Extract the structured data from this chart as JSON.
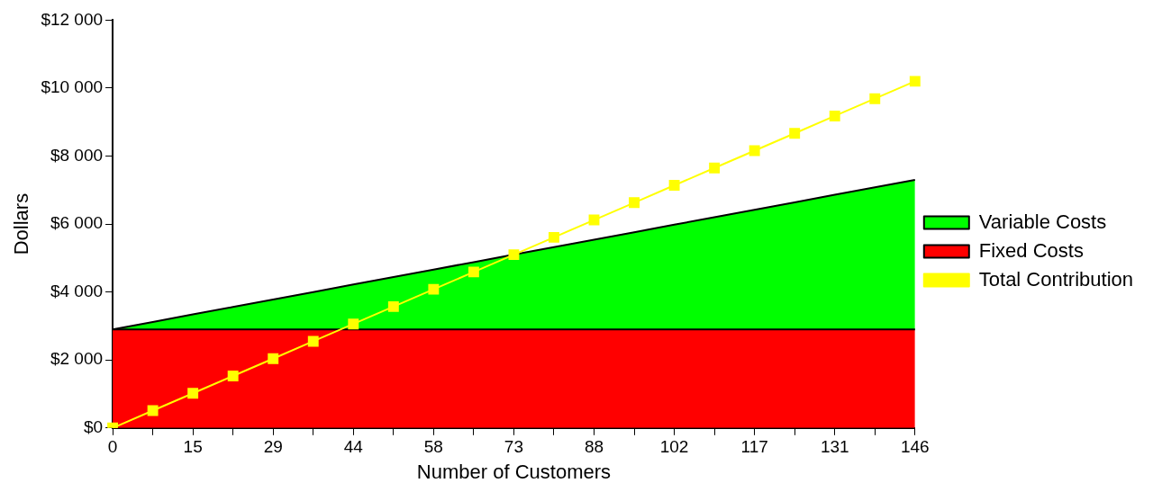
{
  "chart_data": {
    "type": "area",
    "xlabel": "Number of Customers",
    "ylabel": "Dollars",
    "categories": [
      "0",
      null,
      "15",
      null,
      "29",
      null,
      "44",
      null,
      "58",
      null,
      "73",
      null,
      "88",
      null,
      "102",
      null,
      "117",
      null,
      "131",
      null,
      "146"
    ],
    "stacked": true,
    "ylim": [
      0,
      12000
    ],
    "yticks": [
      {
        "value": 0,
        "label": "$0"
      },
      {
        "value": 2000,
        "label": "$2 000"
      },
      {
        "value": 4000,
        "label": "$4 000"
      },
      {
        "value": 6000,
        "label": "$6 000"
      },
      {
        "value": 8000,
        "label": "$8 000"
      },
      {
        "value": 10000,
        "label": "$10 000"
      },
      {
        "value": 12000,
        "label": "$12 000"
      }
    ],
    "grid": false,
    "legend": "right",
    "series": [
      {
        "name": "Fixed Costs",
        "color": "#ff0000",
        "values": [
          2900,
          2900,
          2900,
          2900,
          2900,
          2900,
          2900,
          2900,
          2900,
          2900,
          2900,
          2900,
          2900,
          2900,
          2900,
          2900,
          2900,
          2900,
          2900,
          2900,
          2900
        ]
      },
      {
        "name": "Variable Costs",
        "color": "#00ff00",
        "values": [
          0,
          220,
          440,
          660,
          880,
          1100,
          1320,
          1540,
          1760,
          1980,
          2200,
          2420,
          2640,
          2860,
          3080,
          3300,
          3520,
          3740,
          3960,
          4180,
          4400
        ]
      },
      {
        "name": "Total Contribution",
        "type": "line",
        "color": "#ffff00",
        "marker": "square",
        "values": [
          0,
          510,
          1020,
          1530,
          2040,
          2550,
          3060,
          3570,
          4080,
          4590,
          5100,
          5610,
          6120,
          6630,
          7140,
          7650,
          8160,
          8670,
          9180,
          9690,
          10200
        ]
      }
    ]
  }
}
